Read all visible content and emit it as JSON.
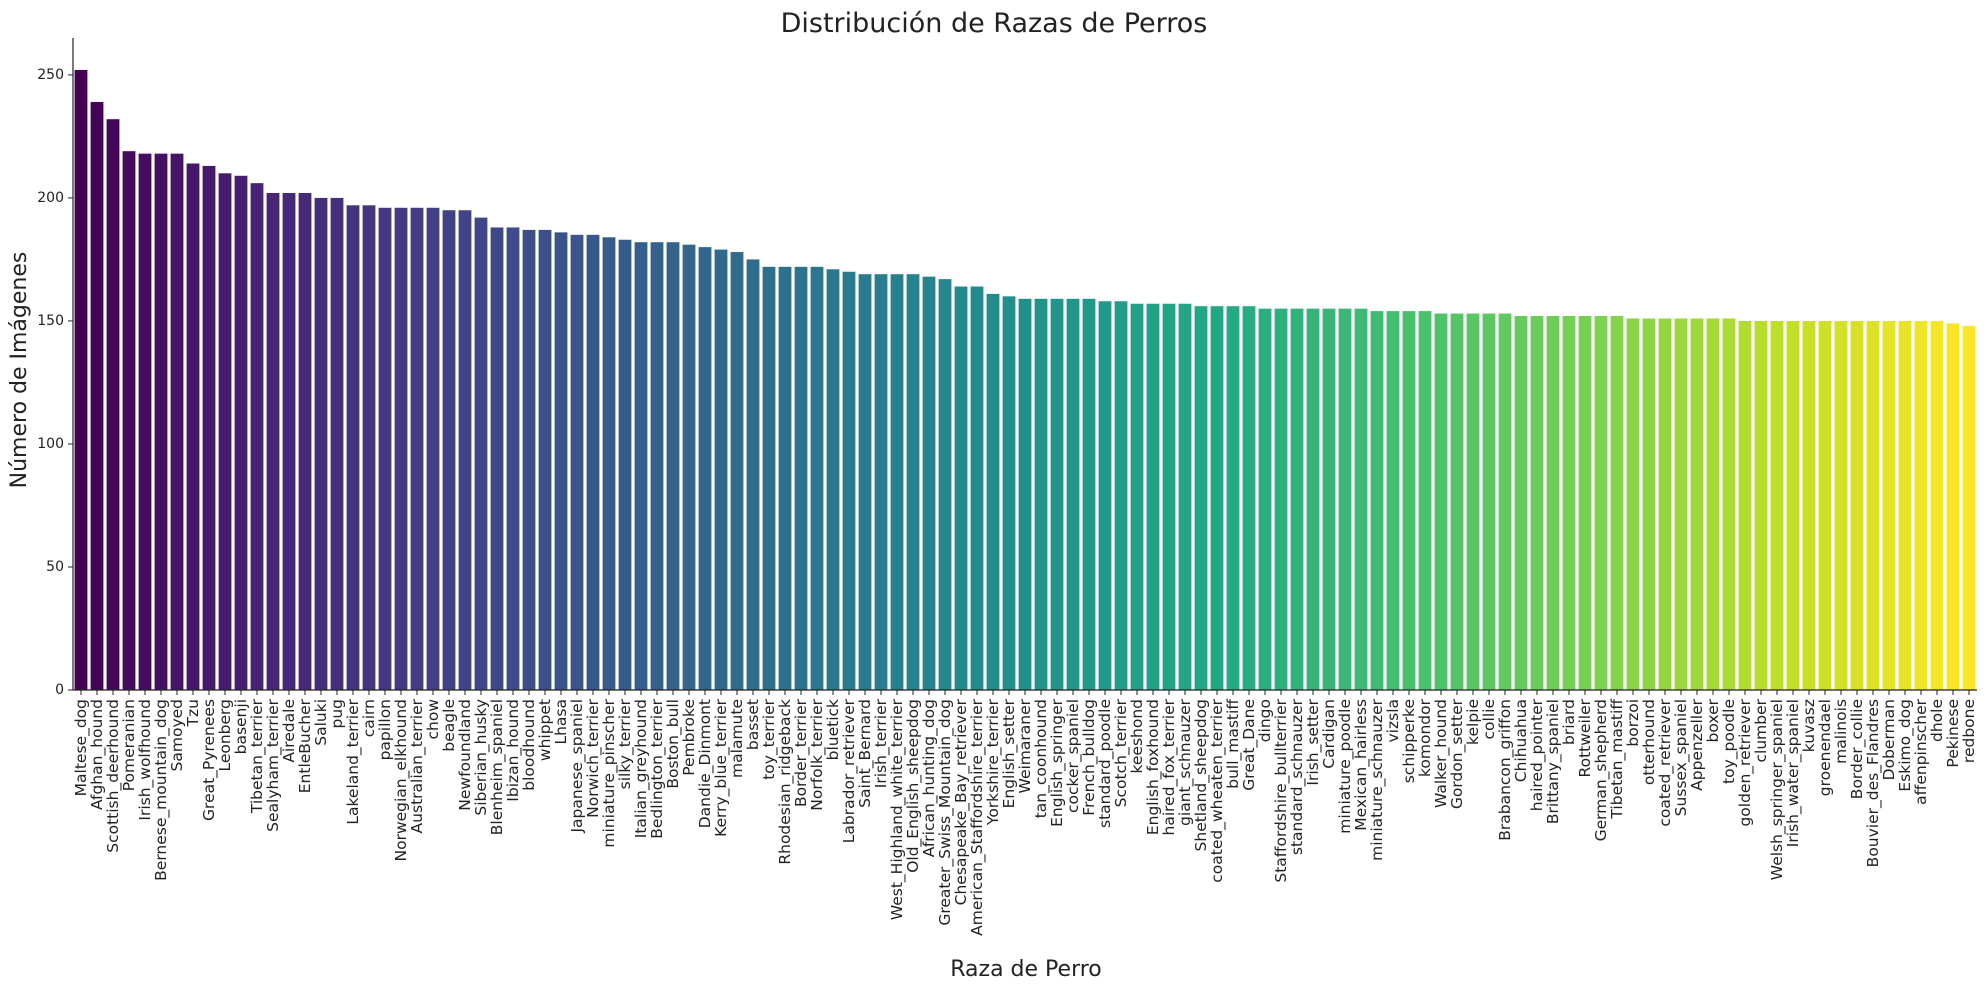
{
  "chart_data": {
    "type": "bar",
    "title": "Distribución de Razas de Perros",
    "xlabel": "Raza de Perro",
    "ylabel": "Número de Imágenes",
    "ylim": [
      0,
      265
    ],
    "yticks": [
      0,
      50,
      100,
      150,
      200,
      250
    ],
    "grid": false,
    "legend": "none",
    "colormap": "viridis",
    "color_start": "#440154",
    "color_end": "#fde725",
    "categories": [
      "Maltese_dog",
      "Afghan_hound",
      "Scottish_deerhound",
      "Pomeranian",
      "Irish_wolfhound",
      "Bernese_mountain_dog",
      "Samoyed",
      "Tzu",
      "Great_Pyrenees",
      "Leonberg",
      "basenji",
      "Tibetan_terrier",
      "Sealyham_terrier",
      "Airedale",
      "EntleBucher",
      "Saluki",
      "pug",
      "Lakeland_terrier",
      "cairn",
      "papillon",
      "Norwegian_elkhound",
      "Australian_terrier",
      "chow",
      "beagle",
      "Newfoundland",
      "Siberian_husky",
      "Blenheim_spaniel",
      "Ibizan_hound",
      "bloodhound",
      "whippet",
      "Lhasa",
      "Japanese_spaniel",
      "Norwich_terrier",
      "miniature_pinscher",
      "silky_terrier",
      "Italian_greyhound",
      "Bedlington_terrier",
      "Boston_bull",
      "Pembroke",
      "Dandie_Dinmont",
      "Kerry_blue_terrier",
      "malamute",
      "basset",
      "toy_terrier",
      "Rhodesian_ridgeback",
      "Border_terrier",
      "Norfolk_terrier",
      "bluetick",
      "Labrador_retriever",
      "Saint_Bernard",
      "Irish_terrier",
      "West_Highland_white_terrier",
      "Old_English_sheepdog",
      "African_hunting_dog",
      "Greater_Swiss_Mountain_dog",
      "Chesapeake_Bay_retriever",
      "American_Staffordshire_terrier",
      "Yorkshire_terrier",
      "English_setter",
      "Weimaraner",
      "tan_coonhound",
      "English_springer",
      "cocker_spaniel",
      "French_bulldog",
      "standard_poodle",
      "Scotch_terrier",
      "keeshond",
      "English_foxhound",
      "haired_fox_terrier",
      "giant_schnauzer",
      "Shetland_sheepdog",
      "coated_wheaten_terrier",
      "bull_mastiff",
      "Great_Dane",
      "dingo",
      "Staffordshire_bullterrier",
      "standard_schnauzer",
      "Irish_setter",
      "Cardigan",
      "miniature_poodle",
      "Mexican_hairless",
      "miniature_schnauzer",
      "vizsla",
      "schipperke",
      "komondor",
      "Walker_hound",
      "Gordon_setter",
      "kelpie",
      "collie",
      "Brabancon_griffon",
      "Chihuahua",
      "haired_pointer",
      "Brittany_spaniel",
      "briard",
      "Rottweiler",
      "German_shepherd",
      "Tibetan_mastiff",
      "borzoi",
      "otterhound",
      "coated_retriever",
      "Sussex_spaniel",
      "Appenzeller",
      "boxer",
      "toy_poodle",
      "golden_retriever",
      "clumber",
      "Welsh_springer_spaniel",
      "Irish_water_spaniel",
      "kuvasz",
      "groenendael",
      "malinois",
      "Border_collie",
      "Bouvier_des_Flandres",
      "Doberman",
      "Eskimo_dog",
      "affenpinscher",
      "dhole",
      "Pekinese",
      "redbone"
    ],
    "values": [
      252,
      239,
      232,
      219,
      218,
      218,
      218,
      214,
      213,
      210,
      209,
      206,
      202,
      202,
      202,
      200,
      200,
      197,
      197,
      196,
      196,
      196,
      196,
      195,
      195,
      192,
      188,
      188,
      187,
      187,
      186,
      185,
      185,
      184,
      183,
      182,
      182,
      182,
      181,
      180,
      179,
      178,
      175,
      172,
      172,
      172,
      172,
      171,
      170,
      169,
      169,
      169,
      169,
      168,
      167,
      164,
      164,
      161,
      160,
      159,
      159,
      159,
      159,
      159,
      158,
      158,
      157,
      157,
      157,
      157,
      156,
      156,
      156,
      156,
      155,
      155,
      155,
      155,
      155,
      155,
      155,
      154,
      154,
      154,
      154,
      153,
      153,
      153,
      153,
      153,
      152,
      152,
      152,
      152,
      152,
      152,
      152,
      151,
      151,
      151,
      151,
      151,
      151,
      151,
      150,
      150,
      150,
      150,
      150,
      150,
      150,
      150,
      150,
      150,
      150,
      150,
      150,
      149,
      148
    ]
  }
}
